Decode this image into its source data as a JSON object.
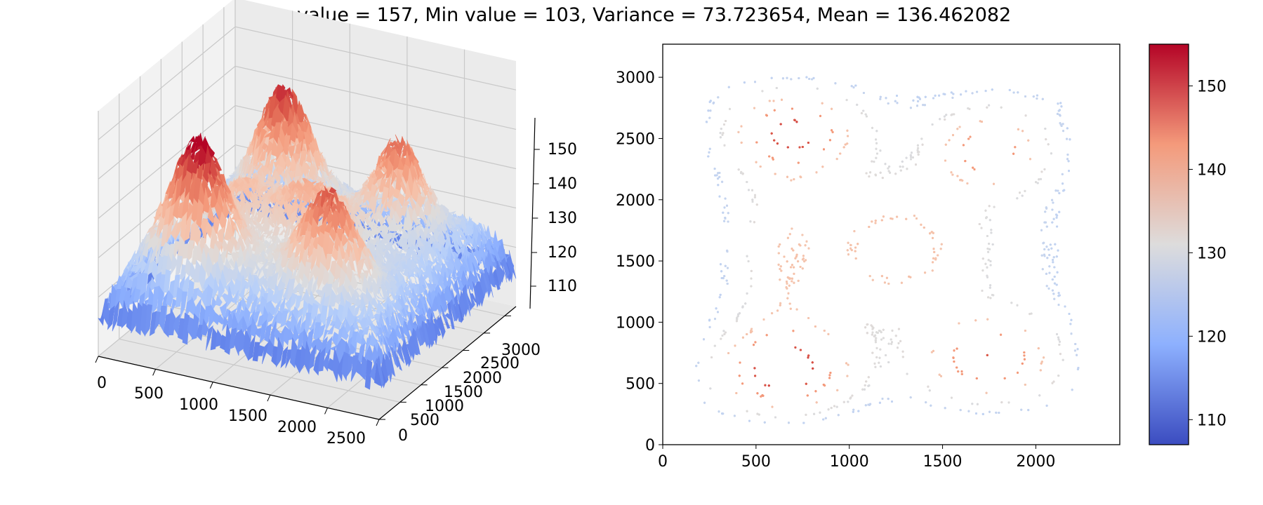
{
  "chart_data": [
    {
      "type": "surface3d",
      "title": "Max value = 157, Min value = 103, Variance = 73.723654, Mean = 136.462082",
      "colormap": "coolwarm",
      "x_ticks": [
        0,
        500,
        1000,
        1500,
        2000,
        2500
      ],
      "y_ticks": [
        0,
        500,
        1000,
        1500,
        2000,
        2500,
        3000
      ],
      "z_ticks": [
        110,
        120,
        130,
        140,
        150
      ],
      "xlim": [
        0,
        2450
      ],
      "ylim": [
        0,
        3270
      ],
      "zlim": [
        103,
        157
      ],
      "grid": true,
      "peaks": [
        {
          "x": 650,
          "y": 600,
          "z": 155
        },
        {
          "x": 1750,
          "y": 700,
          "z": 152
        },
        {
          "x": 700,
          "y": 2550,
          "z": 153
        },
        {
          "x": 1750,
          "y": 2400,
          "z": 150
        },
        {
          "x": 1250,
          "y": 1600,
          "z": 141
        }
      ],
      "stats": {
        "max": 157,
        "min": 103,
        "variance": 73.723654,
        "mean": 136.462082
      }
    },
    {
      "type": "scatter",
      "colormap": "coolwarm",
      "x_ticks": [
        0,
        500,
        1000,
        1500,
        2000
      ],
      "y_ticks": [
        0,
        500,
        1000,
        1500,
        2000,
        2500,
        3000
      ],
      "xlim": [
        0,
        2450
      ],
      "ylim": [
        0,
        3270
      ],
      "contour_levels": [
        127,
        131,
        137,
        143,
        150
      ],
      "colorbar": {
        "ticks": [
          110,
          120,
          130,
          140,
          150
        ],
        "range": [
          107,
          155
        ]
      }
    }
  ]
}
